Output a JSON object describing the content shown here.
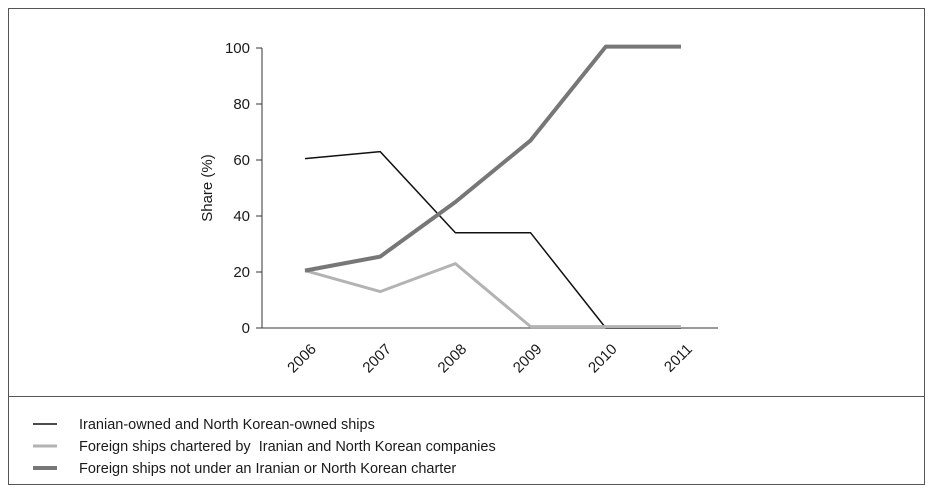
{
  "chart_data": {
    "type": "line",
    "title": "",
    "xlabel": "",
    "ylabel": "Share (%)",
    "categories": [
      "2006",
      "2007",
      "2008",
      "2009",
      "2010",
      "2011"
    ],
    "yticks": [
      "0",
      "20",
      "40",
      "60",
      "80",
      "100"
    ],
    "ylim": [
      0,
      100
    ],
    "grid": false,
    "legend_position": "bottom",
    "series": [
      {
        "name": "Iranian-owned and North Korean-owned ships",
        "values": [
          60.5,
          63,
          34,
          34,
          0,
          0
        ],
        "color": "#111111",
        "style": "thin"
      },
      {
        "name": "Foreign ships chartered by  Iranian and North Korean companies",
        "values": [
          20.5,
          13,
          23,
          0.5,
          0.5,
          0.5
        ],
        "color": "#b3b3b3",
        "style": "medium"
      },
      {
        "name": "Foreign ships not under an Iranian or North Korean charter",
        "values": [
          20.5,
          25.5,
          45,
          67,
          100.5,
          100.5
        ],
        "color": "#777777",
        "style": "thick"
      }
    ]
  }
}
